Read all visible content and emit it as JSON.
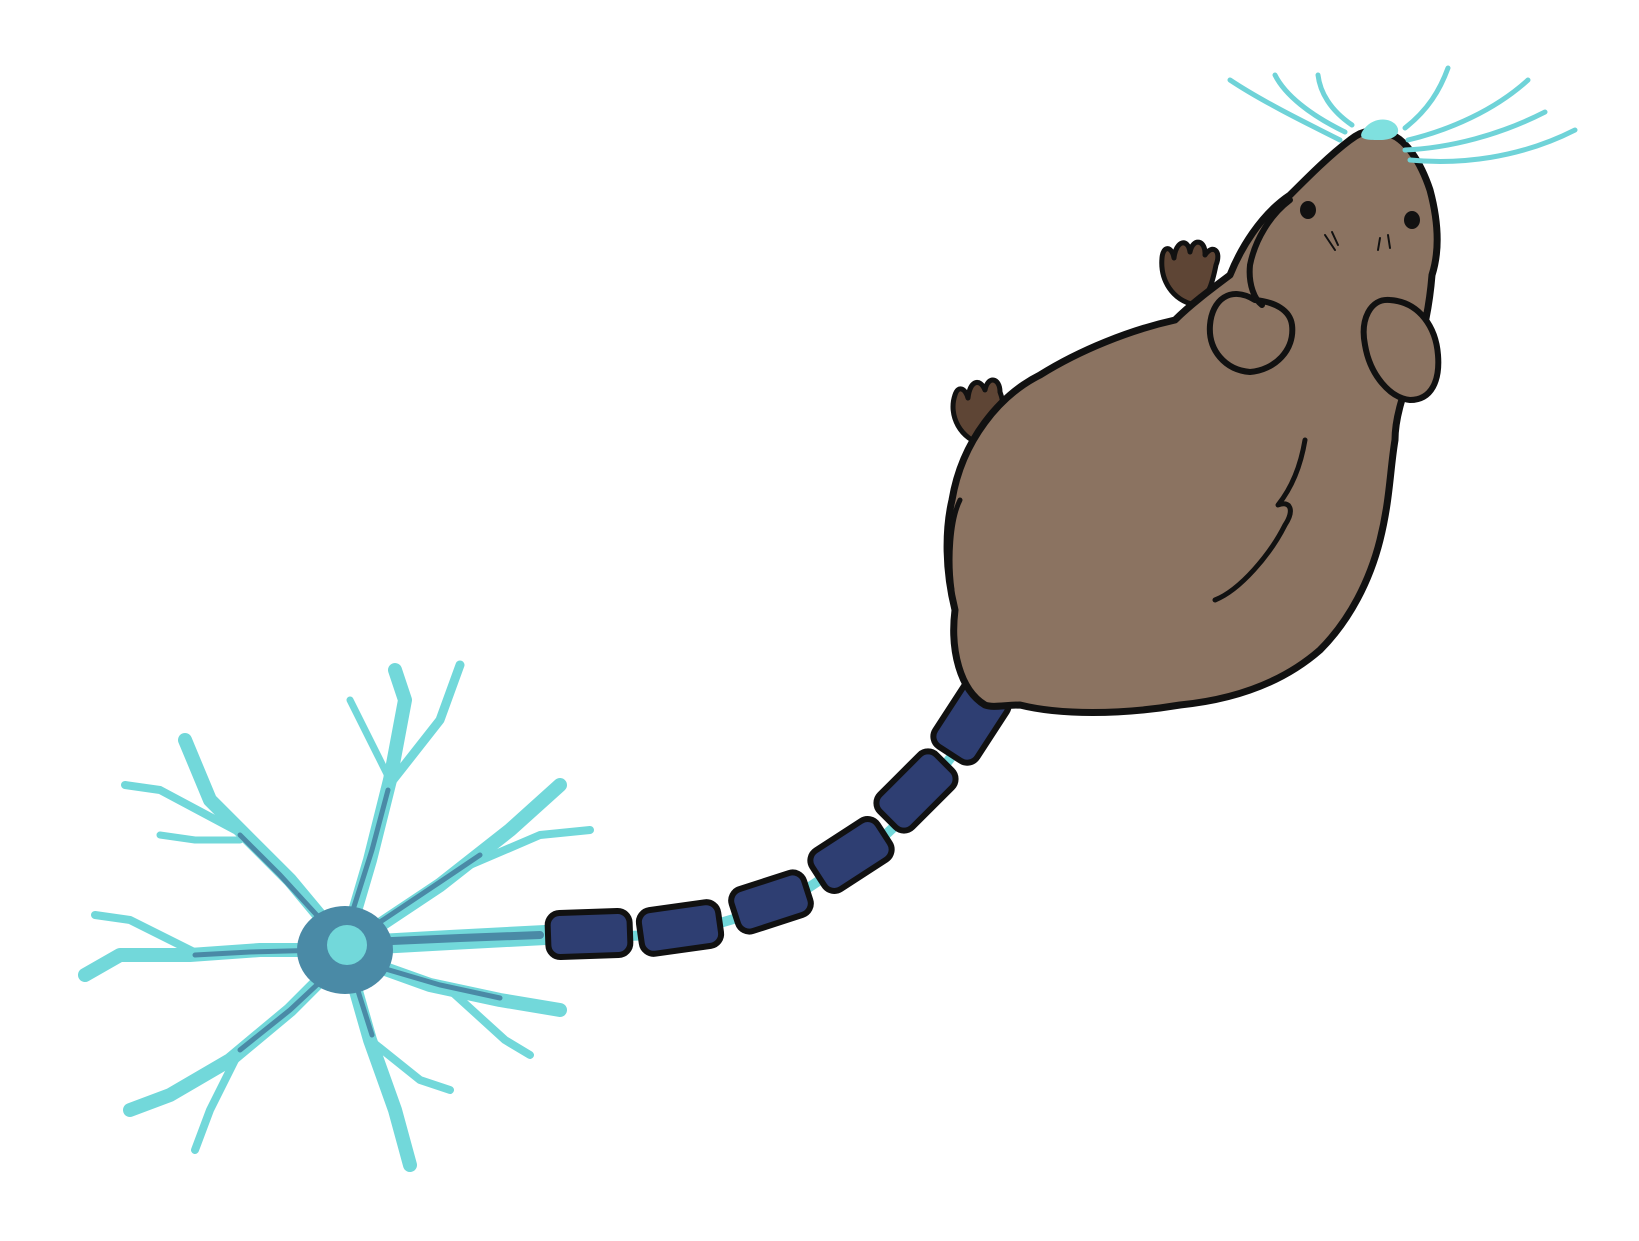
{
  "illustration": {
    "subject": "mouse-with-neuron-tail",
    "colors": {
      "background": "#ffffff",
      "outline": "#111111",
      "fur": "#8b7361",
      "paw": "#5e4535",
      "myelin": "#2e3e72",
      "neuron_light": "#72d8da",
      "neuron_dark": "#4a8aa6",
      "whisker": "#6fd3d8",
      "nose": "#7fe0df"
    }
  }
}
